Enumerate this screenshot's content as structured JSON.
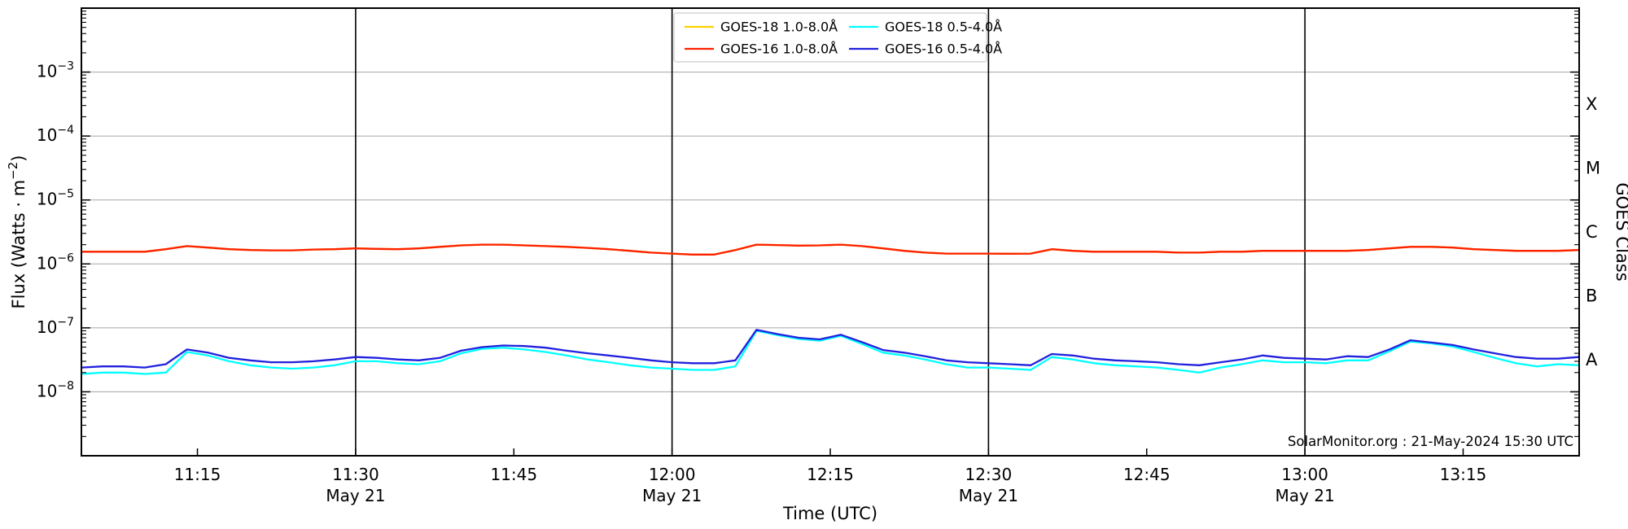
{
  "figure": {
    "background": "#ffffff",
    "watermark": "SolarMonitor.org : 21-May-2024 15:30 UTC"
  },
  "chart_data": {
    "type": "line",
    "title": "",
    "xlabel": "Time (UTC)",
    "ylabel": {
      "pre": "Flux (Watts · m",
      "sup": "−2",
      "post": ")"
    },
    "ylabel_right": "GOES Class",
    "y_scale": "log",
    "ylim": [
      1e-09,
      0.01
    ],
    "y_labeled_exponents": [
      -3,
      -4,
      -5,
      -6,
      -7,
      -8
    ],
    "grid": {
      "horizontal_decades": true,
      "color": "#b0b0b0"
    },
    "x_domain": [
      "11:04",
      "13:26"
    ],
    "x_major_ticks": [
      "11:15",
      "11:30",
      "11:45",
      "12:00",
      "12:15",
      "12:30",
      "12:45",
      "13:00",
      "13:15"
    ],
    "x_date_sublabel": "May 21",
    "x_date_sublabel_at": [
      "11:30",
      "12:00",
      "12:30",
      "13:00"
    ],
    "vertical_lines_at": [
      "11:30",
      "12:00",
      "12:30",
      "13:00"
    ],
    "goes_classes": [
      {
        "label": "X",
        "log10_center": -3.5
      },
      {
        "label": "M",
        "log10_center": -4.5
      },
      {
        "label": "C",
        "log10_center": -5.5
      },
      {
        "label": "B",
        "log10_center": -6.5
      },
      {
        "label": "A",
        "log10_center": -7.5
      }
    ],
    "legend": {
      "position": "top-center",
      "entries": [
        "GOES-18 1.0-8.0Å",
        "GOES-16 1.0-8.0Å",
        "GOES-18 0.5-4.0Å",
        "GOES-16 0.5-4.0Å"
      ]
    },
    "times": [
      "11:04",
      "11:06",
      "11:08",
      "11:10",
      "11:12",
      "11:14",
      "11:16",
      "11:18",
      "11:20",
      "11:22",
      "11:24",
      "11:26",
      "11:28",
      "11:30",
      "11:32",
      "11:34",
      "11:36",
      "11:38",
      "11:40",
      "11:42",
      "11:44",
      "11:46",
      "11:48",
      "11:50",
      "11:52",
      "11:54",
      "11:56",
      "11:58",
      "12:00",
      "12:02",
      "12:04",
      "12:06",
      "12:08",
      "12:10",
      "12:12",
      "12:14",
      "12:16",
      "12:18",
      "12:20",
      "12:22",
      "12:24",
      "12:26",
      "12:28",
      "12:30",
      "12:32",
      "12:34",
      "12:36",
      "12:38",
      "12:40",
      "12:42",
      "12:44",
      "12:46",
      "12:48",
      "12:50",
      "12:52",
      "12:54",
      "12:56",
      "12:58",
      "13:00",
      "13:02",
      "13:04",
      "13:06",
      "13:08",
      "13:10",
      "13:12",
      "13:14",
      "13:16",
      "13:18",
      "13:20",
      "13:22",
      "13:24",
      "13:26"
    ],
    "series": [
      {
        "name": "GOES-18 1.0-8.0Å",
        "color": "#ffd000",
        "values": [
          1.55e-06,
          1.55e-06,
          1.55e-06,
          1.55e-06,
          1.7e-06,
          1.9e-06,
          1.8e-06,
          1.7e-06,
          1.65e-06,
          1.63e-06,
          1.63e-06,
          1.68e-06,
          1.7e-06,
          1.75e-06,
          1.72e-06,
          1.7e-06,
          1.75e-06,
          1.85e-06,
          1.95e-06,
          2e-06,
          2e-06,
          1.95e-06,
          1.9e-06,
          1.85e-06,
          1.78e-06,
          1.7e-06,
          1.6e-06,
          1.5e-06,
          1.45e-06,
          1.4e-06,
          1.4e-06,
          1.65e-06,
          2e-06,
          1.97e-06,
          1.93e-06,
          1.95e-06,
          2e-06,
          1.9e-06,
          1.75e-06,
          1.6e-06,
          1.5e-06,
          1.45e-06,
          1.45e-06,
          1.45e-06,
          1.44e-06,
          1.45e-06,
          1.7e-06,
          1.6e-06,
          1.55e-06,
          1.55e-06,
          1.55e-06,
          1.55e-06,
          1.5e-06,
          1.5e-06,
          1.55e-06,
          1.55e-06,
          1.6e-06,
          1.6e-06,
          1.6e-06,
          1.6e-06,
          1.6e-06,
          1.65e-06,
          1.75e-06,
          1.85e-06,
          1.85e-06,
          1.8e-06,
          1.7e-06,
          1.65e-06,
          1.6e-06,
          1.6e-06,
          1.6e-06,
          1.65e-06
        ]
      },
      {
        "name": "GOES-16 1.0-8.0Å",
        "color": "#ff2000",
        "values": [
          1.55e-06,
          1.55e-06,
          1.55e-06,
          1.55e-06,
          1.7e-06,
          1.9e-06,
          1.8e-06,
          1.7e-06,
          1.65e-06,
          1.63e-06,
          1.63e-06,
          1.68e-06,
          1.7e-06,
          1.75e-06,
          1.72e-06,
          1.7e-06,
          1.75e-06,
          1.85e-06,
          1.95e-06,
          2e-06,
          2e-06,
          1.95e-06,
          1.9e-06,
          1.85e-06,
          1.78e-06,
          1.7e-06,
          1.6e-06,
          1.5e-06,
          1.45e-06,
          1.4e-06,
          1.4e-06,
          1.65e-06,
          2e-06,
          1.97e-06,
          1.93e-06,
          1.95e-06,
          2e-06,
          1.9e-06,
          1.75e-06,
          1.6e-06,
          1.5e-06,
          1.45e-06,
          1.45e-06,
          1.45e-06,
          1.44e-06,
          1.45e-06,
          1.7e-06,
          1.6e-06,
          1.55e-06,
          1.55e-06,
          1.55e-06,
          1.55e-06,
          1.5e-06,
          1.5e-06,
          1.55e-06,
          1.55e-06,
          1.6e-06,
          1.6e-06,
          1.6e-06,
          1.6e-06,
          1.6e-06,
          1.65e-06,
          1.75e-06,
          1.85e-06,
          1.85e-06,
          1.8e-06,
          1.7e-06,
          1.65e-06,
          1.6e-06,
          1.6e-06,
          1.6e-06,
          1.65e-06
        ]
      },
      {
        "name": "GOES-18 0.5-4.0Å",
        "color": "#00ffff",
        "values": [
          1.9e-08,
          2e-08,
          2e-08,
          1.9e-08,
          2e-08,
          4.2e-08,
          3.7e-08,
          3e-08,
          2.6e-08,
          2.4e-08,
          2.3e-08,
          2.4e-08,
          2.6e-08,
          3e-08,
          3e-08,
          2.8e-08,
          2.7e-08,
          3e-08,
          4e-08,
          4.7e-08,
          4.9e-08,
          4.6e-08,
          4.2e-08,
          3.7e-08,
          3.2e-08,
          2.9e-08,
          2.6e-08,
          2.4e-08,
          2.3e-08,
          2.2e-08,
          2.2e-08,
          2.5e-08,
          9e-08,
          7.7e-08,
          6.7e-08,
          6.3e-08,
          7.5e-08,
          5.6e-08,
          4.1e-08,
          3.7e-08,
          3.2e-08,
          2.7e-08,
          2.4e-08,
          2.4e-08,
          2.3e-08,
          2.2e-08,
          3.5e-08,
          3.2e-08,
          2.8e-08,
          2.6e-08,
          2.5e-08,
          2.4e-08,
          2.2e-08,
          2e-08,
          2.4e-08,
          2.7e-08,
          3.1e-08,
          2.9e-08,
          2.9e-08,
          2.8e-08,
          3.1e-08,
          3.1e-08,
          4.3e-08,
          6.1e-08,
          5.7e-08,
          5.1e-08,
          4.2e-08,
          3.4e-08,
          2.8e-08,
          2.5e-08,
          2.7e-08,
          2.6e-08
        ]
      },
      {
        "name": "GOES-16 0.5-4.0Å",
        "color": "#2121de",
        "values": [
          2.4e-08,
          2.5e-08,
          2.5e-08,
          2.4e-08,
          2.7e-08,
          4.6e-08,
          4.1e-08,
          3.4e-08,
          3.1e-08,
          2.9e-08,
          2.9e-08,
          3e-08,
          3.2e-08,
          3.5e-08,
          3.4e-08,
          3.2e-08,
          3.1e-08,
          3.4e-08,
          4.4e-08,
          5e-08,
          5.3e-08,
          5.2e-08,
          4.9e-08,
          4.4e-08,
          4e-08,
          3.7e-08,
          3.4e-08,
          3.1e-08,
          2.9e-08,
          2.8e-08,
          2.8e-08,
          3.1e-08,
          9.3e-08,
          8e-08,
          7e-08,
          6.6e-08,
          7.8e-08,
          6e-08,
          4.5e-08,
          4.1e-08,
          3.6e-08,
          3.1e-08,
          2.9e-08,
          2.8e-08,
          2.7e-08,
          2.6e-08,
          3.9e-08,
          3.7e-08,
          3.3e-08,
          3.1e-08,
          3e-08,
          2.9e-08,
          2.7e-08,
          2.6e-08,
          2.9e-08,
          3.2e-08,
          3.7e-08,
          3.4e-08,
          3.3e-08,
          3.2e-08,
          3.6e-08,
          3.5e-08,
          4.6e-08,
          6.4e-08,
          5.9e-08,
          5.4e-08,
          4.6e-08,
          4e-08,
          3.5e-08,
          3.3e-08,
          3.3e-08,
          3.5e-08
        ]
      }
    ],
    "watermark": "SolarMonitor.org : 21-May-2024 15:30 UTC"
  }
}
